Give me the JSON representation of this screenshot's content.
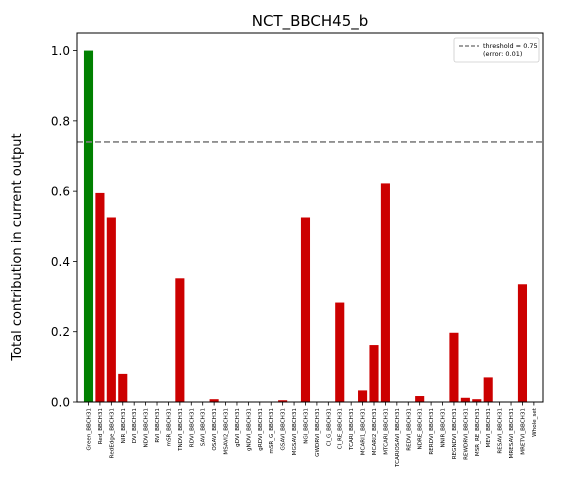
{
  "chart_data": {
    "type": "bar",
    "title": "NCT_BBCH45_b",
    "xlabel": "",
    "ylabel": "Total contribution in current output",
    "ylim": [
      0,
      1.05
    ],
    "yticks": [
      "0.0",
      "0.2",
      "0.4",
      "0.6",
      "0.8",
      "1.0"
    ],
    "grid": false,
    "categories": [
      "Green_BBCH31",
      "Red_BBCH31",
      "RedEdge_BBCH31",
      "NIR_BBCH31",
      "DVI_BBCH31",
      "NDVI_BBCH31",
      "RVI_BBCH31",
      "mSR_BBCH31",
      "TNDVI_BBCH31",
      "RDVI_BBCH31",
      "SAVI_BBCH31",
      "OSAVI_BBCH31",
      "MSAVI2_BBCH31",
      "gDVI_BBCH31",
      "gNDVI_BBCH31",
      "gRDVI_BBCH31",
      "mSR_G_BBCH31",
      "GSAVI_BBCH31",
      "MGSAVI_BBCH31",
      "NGI_BBCH31",
      "GWDRVI_BBCH31",
      "CI_G_BBCH31",
      "CI_RE_BBCH31",
      "TCARI_BBCH31",
      "MCARI1_BBCH31",
      "MCARI2_BBCH31",
      "MTCARI_BBCH31",
      "TCARIOSAVI_BBCH31",
      "REDVI_BBCH31",
      "NDRE_BBCH31",
      "RERDVI_BBCH31",
      "NNIR_BBCH31",
      "REGNDVI_BBCH31",
      "REWDRVI_BBCH31",
      "MSR_RE_BBCH31",
      "MEVI_BBCH31",
      "RESAVI_BBCH31",
      "MRESAVI_BBCH31",
      "MRETVI_BBCH31",
      "Whole_set"
    ],
    "values": [
      1.0,
      0.595,
      0.525,
      0.08,
      0.0,
      0.0,
      0.0,
      0.0,
      0.352,
      0.0,
      0.0,
      0.008,
      0.0,
      0.0,
      0.0,
      0.0,
      0.0,
      0.005,
      0.0,
      0.525,
      0.0,
      0.0,
      0.283,
      0.0,
      0.033,
      0.162,
      0.622,
      0.0,
      0.0,
      0.017,
      0.0,
      0.0,
      0.197,
      0.012,
      0.008,
      0.07,
      0.0,
      0.0,
      0.335,
      0.0
    ],
    "bar_colors": [
      "#008000",
      "#cc0000",
      "#cc0000",
      "#cc0000",
      "#cc0000",
      "#cc0000",
      "#cc0000",
      "#cc0000",
      "#cc0000",
      "#cc0000",
      "#cc0000",
      "#cc0000",
      "#cc0000",
      "#cc0000",
      "#cc0000",
      "#cc0000",
      "#cc0000",
      "#cc0000",
      "#cc0000",
      "#cc0000",
      "#cc0000",
      "#cc0000",
      "#cc0000",
      "#cc0000",
      "#cc0000",
      "#cc0000",
      "#cc0000",
      "#cc0000",
      "#cc0000",
      "#cc0000",
      "#cc0000",
      "#cc0000",
      "#cc0000",
      "#cc0000",
      "#cc0000",
      "#cc0000",
      "#cc0000",
      "#cc0000",
      "#cc0000",
      "#cc0000"
    ],
    "threshold": {
      "value": 0.74,
      "color": "#808080",
      "legend_label_line1": "threshold = 0.75",
      "legend_label_line2": "(error: 0.01)"
    },
    "legend_placement": "top-right"
  }
}
